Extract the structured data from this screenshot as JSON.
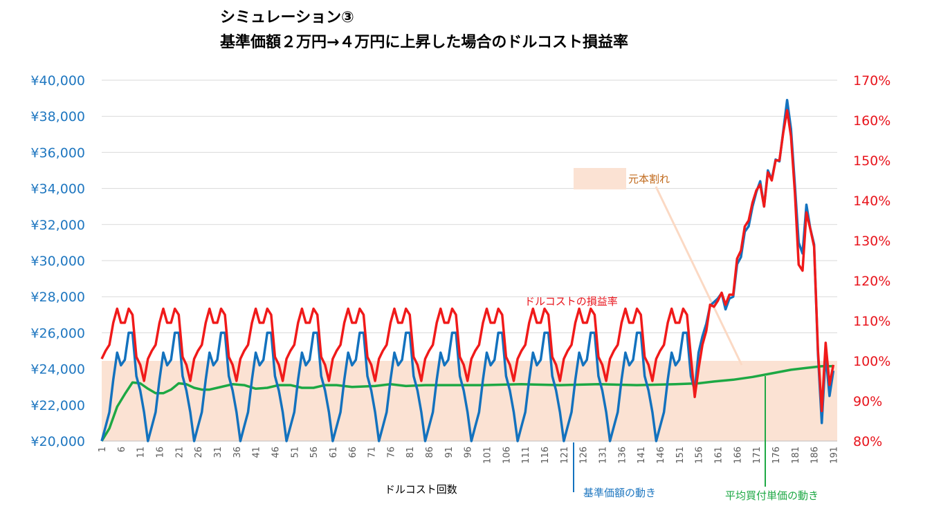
{
  "chart_data": {
    "type": "line",
    "title_line1": "シミュレーション③",
    "title_line2": "基準価額２万円→４万円に上昇した場合のドルコスト損益率",
    "xlabel": "ドルコスト回数",
    "x_range": [
      1,
      192
    ],
    "x_tick_labels": [
      "1",
      "6",
      "11",
      "16",
      "21",
      "26",
      "31",
      "36",
      "41",
      "46",
      "51",
      "56",
      "61",
      "66",
      "71",
      "76",
      "81",
      "86",
      "91",
      "96",
      "101",
      "106",
      "111",
      "116",
      "121",
      "126",
      "131",
      "136",
      "141",
      "146",
      "151",
      "156",
      "161",
      "166",
      "171",
      "176",
      "181",
      "186",
      "191"
    ],
    "left_axis": {
      "ylim": [
        20000,
        40000
      ],
      "tick_labels": [
        "¥20,000",
        "¥22,000",
        "¥24,000",
        "¥26,000",
        "¥28,000",
        "¥30,000",
        "¥32,000",
        "¥34,000",
        "¥36,000",
        "¥38,000",
        "¥40,000"
      ],
      "color": "#1F77C0"
    },
    "right_axis": {
      "ylim": [
        80,
        170
      ],
      "tick_labels": [
        "80%",
        "90%",
        "100%",
        "110%",
        "120%",
        "130%",
        "140%",
        "150%",
        "160%",
        "170%"
      ],
      "color": "#E8141C"
    },
    "loss_zone": {
      "label": "元本割れ",
      "from_pct": 80,
      "to_pct": 100,
      "color": "#FBE2D3",
      "label_color": "#C0691B"
    },
    "annotations": {
      "profit_rate_label": "ドルコストの損益率",
      "base_price_label": "基準価額の動き",
      "avg_price_label": "平均買付単価の動き"
    },
    "series": [
      {
        "name": "基準価額の動き",
        "axis": "left",
        "color": "#1372BE",
        "cycle": [
          20000,
          20800,
          21600,
          23400,
          24900,
          24200,
          24500,
          26000,
          26000,
          23600,
          22800,
          21600
        ],
        "start": 1,
        "end_points": [
          [
            155,
            22800
          ],
          [
            156,
            24900
          ],
          [
            157,
            25800
          ],
          [
            158,
            26500
          ],
          [
            159,
            27500
          ],
          [
            160,
            27700
          ],
          [
            161,
            27900
          ],
          [
            162,
            28200
          ],
          [
            163,
            27300
          ],
          [
            164,
            27900
          ],
          [
            165,
            28000
          ],
          [
            166,
            29800
          ],
          [
            167,
            30200
          ],
          [
            168,
            31600
          ],
          [
            169,
            31900
          ],
          [
            170,
            33000
          ],
          [
            171,
            33800
          ],
          [
            172,
            34400
          ],
          [
            173,
            33000
          ],
          [
            174,
            35000
          ],
          [
            175,
            34500
          ],
          [
            176,
            35600
          ],
          [
            177,
            35500
          ],
          [
            178,
            37200
          ],
          [
            179,
            38900
          ],
          [
            180,
            37300
          ],
          [
            181,
            34200
          ],
          [
            182,
            31000
          ],
          [
            183,
            30400
          ],
          [
            184,
            33100
          ],
          [
            185,
            31800
          ],
          [
            186,
            30900
          ],
          [
            187,
            24800
          ],
          [
            188,
            21000
          ],
          [
            189,
            24800
          ],
          [
            190,
            22500
          ],
          [
            191,
            23900
          ]
        ]
      },
      {
        "name": "ドルコストの損益率",
        "axis": "right",
        "color": "#F01A1A",
        "cycle": [
          100.5,
          102.5,
          104,
          109.5,
          113,
          109.5,
          109.5,
          113,
          111.5,
          101,
          99,
          95
        ],
        "start": 1,
        "end_points": [
          [
            155,
            91
          ],
          [
            156,
            98
          ],
          [
            157,
            104
          ],
          [
            158,
            107.5
          ],
          [
            159,
            114
          ],
          [
            160,
            113.5
          ],
          [
            161,
            115
          ],
          [
            162,
            117
          ],
          [
            163,
            114
          ],
          [
            164,
            116.5
          ],
          [
            165,
            116.5
          ],
          [
            166,
            125.5
          ],
          [
            167,
            127.5
          ],
          [
            168,
            133.5
          ],
          [
            169,
            135
          ],
          [
            170,
            139.5
          ],
          [
            171,
            142.5
          ],
          [
            172,
            144
          ],
          [
            173,
            138.5
          ],
          [
            174,
            147
          ],
          [
            175,
            145
          ],
          [
            176,
            150
          ],
          [
            177,
            150
          ],
          [
            178,
            157
          ],
          [
            179,
            162.5
          ],
          [
            180,
            156
          ],
          [
            181,
            142
          ],
          [
            182,
            124
          ],
          [
            183,
            122.5
          ],
          [
            184,
            137
          ],
          [
            185,
            133
          ],
          [
            186,
            128.5
          ],
          [
            187,
            102.5
          ],
          [
            188,
            87.5
          ],
          [
            189,
            104.5
          ],
          [
            190,
            94
          ],
          [
            191,
            99
          ]
        ]
      },
      {
        "name": "平均買付単価の動き",
        "axis": "left",
        "color": "#1DA844",
        "points": [
          [
            1,
            20000
          ],
          [
            3,
            20700
          ],
          [
            5,
            21900
          ],
          [
            7,
            22600
          ],
          [
            9,
            23250
          ],
          [
            11,
            23200
          ],
          [
            13,
            22900
          ],
          [
            15,
            22650
          ],
          [
            17,
            22650
          ],
          [
            19,
            22850
          ],
          [
            21,
            23200
          ],
          [
            23,
            23150
          ],
          [
            25,
            22950
          ],
          [
            27,
            22850
          ],
          [
            29,
            22850
          ],
          [
            31,
            22950
          ],
          [
            35,
            23150
          ],
          [
            38,
            23100
          ],
          [
            41,
            22900
          ],
          [
            44,
            22950
          ],
          [
            47,
            23100
          ],
          [
            50,
            23100
          ],
          [
            53,
            22950
          ],
          [
            56,
            22950
          ],
          [
            59,
            23100
          ],
          [
            62,
            23100
          ],
          [
            66,
            23000
          ],
          [
            72,
            23050
          ],
          [
            76,
            23150
          ],
          [
            80,
            23050
          ],
          [
            85,
            23100
          ],
          [
            92,
            23100
          ],
          [
            100,
            23100
          ],
          [
            110,
            23150
          ],
          [
            120,
            23100
          ],
          [
            130,
            23150
          ],
          [
            140,
            23100
          ],
          [
            150,
            23150
          ],
          [
            156,
            23200
          ],
          [
            160,
            23300
          ],
          [
            165,
            23400
          ],
          [
            170,
            23550
          ],
          [
            175,
            23750
          ],
          [
            180,
            23950
          ],
          [
            184,
            24050
          ],
          [
            188,
            24150
          ],
          [
            191,
            24150
          ]
        ]
      }
    ]
  }
}
